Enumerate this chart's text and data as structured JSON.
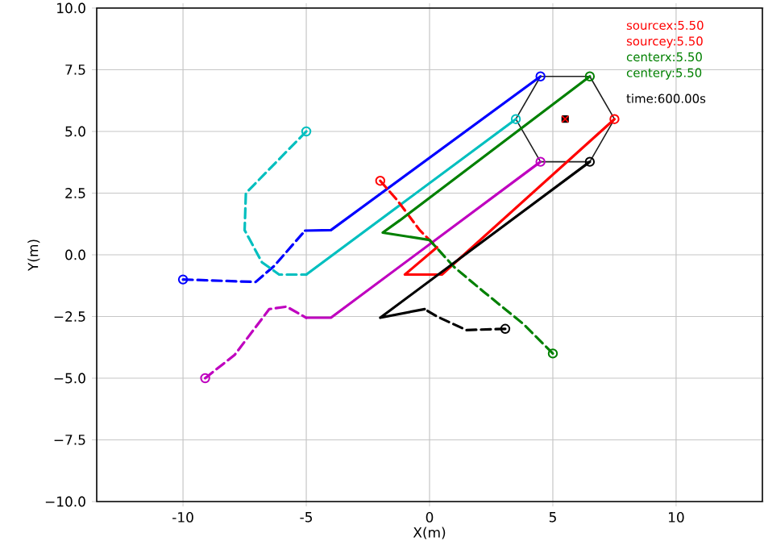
{
  "chart_data": {
    "type": "line",
    "xlabel": "X(m)",
    "ylabel": "Y(m)",
    "xlim": [
      -13.5,
      13.5
    ],
    "ylim": [
      -10,
      10
    ],
    "xticks": [
      -10,
      -5,
      0,
      5,
      10
    ],
    "yticks": [
      {
        "value": -10,
        "label": "−10.0"
      },
      {
        "value": -7.5,
        "label": "−7.5"
      },
      {
        "value": -5,
        "label": "−5.0"
      },
      {
        "value": -2.5,
        "label": "−2.5"
      },
      {
        "value": 0,
        "label": "0.0"
      },
      {
        "value": 2.5,
        "label": "2.5"
      },
      {
        "value": 5,
        "label": "5.0"
      },
      {
        "value": 7.5,
        "label": "7.5"
      },
      {
        "value": 10,
        "label": "10.0"
      }
    ],
    "grid": true,
    "annotations": [
      "sourcex:5.50",
      "sourcey:5.50",
      "centerx:5.50",
      "centery:5.50",
      "time:600.00s"
    ],
    "series": [
      {
        "color": "#1e1e1e",
        "line_style": "solid",
        "marker": "none",
        "x": [
          3.5,
          4.5,
          6.5,
          7.5
        ],
        "values": [
          5.5,
          7.23,
          7.23,
          5.5
        ]
      },
      {
        "color": "#1e1e1e",
        "line_style": "solid",
        "marker": "none",
        "x": [
          3.5,
          4.5,
          6.5,
          7.5
        ],
        "values": [
          5.5,
          3.77,
          3.77,
          5.5
        ]
      },
      {
        "type": "line",
        "color": "#0000ff",
        "line_style": "dashed",
        "marker": "none",
        "x": [
          -10,
          -7.05,
          -6.3,
          -5.05
        ],
        "values": [
          -1,
          -1.1,
          -0.45,
          0.98
        ]
      },
      {
        "type": "line",
        "color": "#0000ff",
        "line_style": "solid",
        "marker": "none",
        "x": [
          -5.05,
          -4,
          4.5
        ],
        "values": [
          0.98,
          1,
          7.23
        ]
      },
      {
        "type": "scatter",
        "color": "#0000ff",
        "marker": "circle",
        "x": [
          -10,
          4.5
        ],
        "values": [
          -1,
          7.23
        ]
      },
      {
        "type": "line",
        "color": "#00bfbf",
        "line_style": "dashed",
        "marker": "none",
        "x": [
          -5,
          -7.45,
          -7.5,
          -6.8,
          -6.1,
          -5
        ],
        "values": [
          5,
          2.5,
          1.0,
          -0.3,
          -0.8,
          -0.8
        ]
      },
      {
        "type": "line",
        "color": "#00bfbf",
        "line_style": "solid",
        "marker": "none",
        "x": [
          -5,
          3.5
        ],
        "values": [
          -0.8,
          5.5
        ]
      },
      {
        "type": "scatter",
        "color": "#00bfbf",
        "marker": "circle",
        "x": [
          -5,
          3.5
        ],
        "values": [
          5,
          5.5
        ]
      },
      {
        "type": "line",
        "color": "#bf00bf",
        "line_style": "dashed",
        "marker": "none",
        "x": [
          -9.1,
          -7.9,
          -6.5,
          -5.8,
          -5
        ],
        "values": [
          -5,
          -4.05,
          -2.2,
          -2.1,
          -2.55
        ]
      },
      {
        "type": "line",
        "color": "#bf00bf",
        "line_style": "solid",
        "marker": "none",
        "x": [
          -5,
          -4,
          4.5
        ],
        "values": [
          -2.55,
          -2.55,
          3.77
        ]
      },
      {
        "type": "scatter",
        "color": "#bf00bf",
        "marker": "circle",
        "x": [
          -9.1,
          4.5
        ],
        "values": [
          -5,
          3.77
        ]
      },
      {
        "type": "line",
        "color": "#ff0000",
        "line_style": "dashed",
        "marker": "none",
        "x": [
          -2,
          -1.3,
          -0.4,
          0.3
        ],
        "values": [
          3,
          2.2,
          1.0,
          0.3
        ]
      },
      {
        "type": "line",
        "color": "#ff0000",
        "line_style": "solid",
        "marker": "none",
        "x": [
          0.3,
          -1,
          0.5,
          7.5
        ],
        "values": [
          0.3,
          -0.8,
          -0.8,
          5.5
        ]
      },
      {
        "type": "scatter",
        "color": "#ff0000",
        "marker": "circle",
        "x": [
          -2,
          7.5
        ],
        "values": [
          3,
          5.5
        ]
      },
      {
        "type": "line",
        "color": "#008000",
        "line_style": "dashed",
        "marker": "none",
        "x": [
          5,
          3.8,
          2.2,
          1.0,
          0
        ],
        "values": [
          -4,
          -2.8,
          -1.5,
          -0.5,
          0.6
        ]
      },
      {
        "type": "line",
        "color": "#008000",
        "line_style": "solid",
        "marker": "none",
        "x": [
          0,
          -1.9,
          -1.2,
          6.5
        ],
        "values": [
          0.6,
          0.9,
          1.4,
          7.23
        ]
      },
      {
        "type": "scatter",
        "color": "#008000",
        "marker": "circle",
        "x": [
          5,
          6.5
        ],
        "values": [
          -4,
          7.23
        ]
      },
      {
        "type": "line",
        "color": "#000000",
        "line_style": "dashed",
        "marker": "none",
        "x": [
          3.07,
          1.5,
          0.3,
          -0.2
        ],
        "values": [
          -3,
          -3.05,
          -2.5,
          -2.2
        ]
      },
      {
        "type": "line",
        "color": "#000000",
        "line_style": "solid",
        "marker": "none",
        "x": [
          -0.2,
          -2,
          6.5
        ],
        "values": [
          -2.2,
          -2.55,
          3.77
        ]
      },
      {
        "type": "scatter",
        "color": "#000000",
        "marker": "circle",
        "x": [
          3.07,
          6.5
        ],
        "values": [
          -3,
          3.77
        ]
      },
      {
        "type": "scatter",
        "color": "#000000",
        "marker": "square",
        "x": [
          5.5
        ],
        "values": [
          5.5
        ]
      },
      {
        "type": "scatter",
        "color": "#ff0000",
        "marker": "cross",
        "x": [
          5.5
        ],
        "values": [
          5.5
        ]
      }
    ]
  }
}
